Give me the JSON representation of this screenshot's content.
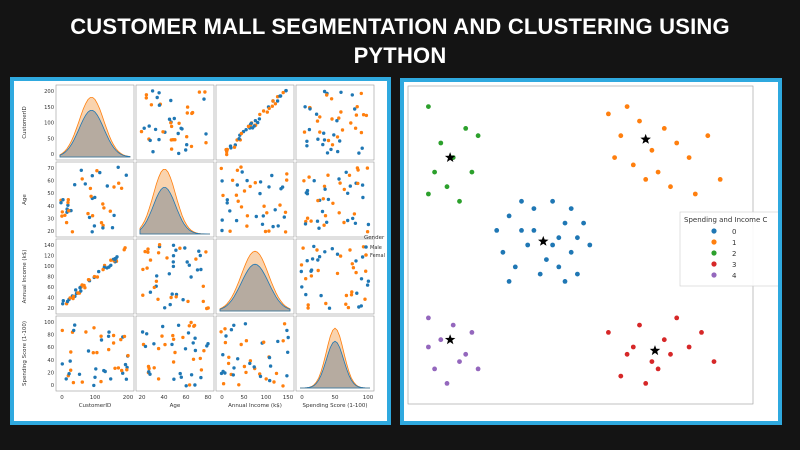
{
  "banner": {
    "title_line1": "CUSTOMER MALL SEGMENTATION AND CLUSTERING USING",
    "title_line2": "PYTHON"
  },
  "colors": {
    "background": "#141414",
    "panel_border": "#2fa9df",
    "male": "#1f77b4",
    "female": "#ff7f0e",
    "cluster0": "#1f77b4",
    "cluster1": "#ff7f0e",
    "cluster2": "#2ca02c",
    "cluster3": "#d62728",
    "cluster4": "#9467bd"
  },
  "pairplot": {
    "variables": [
      "CustomerID",
      "Age",
      "Annual Income (k$)",
      "Spending Score (1-100)"
    ],
    "legend_title": "Gender",
    "hue_levels": [
      "Male",
      "Female"
    ],
    "x_ticks": [
      [
        "0",
        "100",
        "200"
      ],
      [
        "20",
        "40",
        "60",
        "80"
      ],
      [
        "0",
        "50",
        "100",
        "150"
      ],
      [
        "0",
        "50",
        "100"
      ]
    ],
    "y_ticks": [
      [
        "0",
        "50",
        "100",
        "150",
        "200"
      ],
      [
        "20",
        "30",
        "40",
        "50",
        "60",
        "70"
      ],
      [
        "20",
        "40",
        "60",
        "80",
        "100",
        "120",
        "140"
      ],
      [
        "0",
        "20",
        "40",
        "60",
        "80",
        "100"
      ]
    ]
  },
  "chart_data": [
    {
      "type": "scatter",
      "title": "",
      "kind": "pairplot",
      "variables": [
        "CustomerID",
        "Age",
        "Annual Income (k$)",
        "Spending Score (1-100)"
      ],
      "hue": "Gender",
      "series": [
        {
          "name": "Male"
        },
        {
          "name": "Female"
        }
      ],
      "ranges": {
        "CustomerID": [
          0,
          200
        ],
        "Age": [
          18,
          70
        ],
        "Annual Income (k$)": [
          15,
          137
        ],
        "Spending Score (1-100)": [
          1,
          99
        ]
      }
    },
    {
      "type": "scatter",
      "title": "",
      "xlabel": "",
      "ylabel": "",
      "legend_title": "Spending and Income C",
      "legend_position": "right",
      "series": [
        {
          "name": "0",
          "points": [
            [
              -0.6,
              0.4
            ],
            [
              -0.4,
              0.2
            ],
            [
              -0.2,
              0.5
            ],
            [
              0.1,
              0.6
            ],
            [
              0.3,
              0.3
            ],
            [
              0.5,
              0.1
            ],
            [
              -0.7,
              -0.1
            ],
            [
              -0.5,
              -0.3
            ],
            [
              -0.3,
              0.0
            ],
            [
              0.0,
              -0.2
            ],
            [
              0.2,
              0.1
            ],
            [
              0.4,
              -0.1
            ],
            [
              0.6,
              0.3
            ],
            [
              -0.8,
              0.2
            ],
            [
              -0.1,
              -0.4
            ],
            [
              0.3,
              -0.5
            ],
            [
              0.5,
              -0.4
            ],
            [
              -0.6,
              -0.5
            ],
            [
              0.1,
              0.0
            ],
            [
              -0.2,
              0.2
            ],
            [
              0.4,
              0.5
            ],
            [
              -0.4,
              0.6
            ],
            [
              0.7,
              0.0
            ],
            [
              0.2,
              -0.3
            ]
          ]
        },
        {
          "name": "1",
          "points": [
            [
              1.0,
              1.8
            ],
            [
              1.2,
              1.5
            ],
            [
              1.5,
              1.7
            ],
            [
              1.7,
              1.3
            ],
            [
              1.9,
              1.6
            ],
            [
              2.1,
              1.4
            ],
            [
              1.1,
              1.2
            ],
            [
              1.4,
              1.1
            ],
            [
              1.6,
              0.9
            ],
            [
              1.8,
              1.0
            ],
            [
              2.3,
              1.2
            ],
            [
              2.6,
              1.5
            ],
            [
              1.3,
              1.9
            ],
            [
              2.0,
              0.8
            ],
            [
              2.4,
              0.7
            ],
            [
              2.8,
              0.9
            ]
          ]
        },
        {
          "name": "2",
          "points": [
            [
              -1.9,
              1.9
            ],
            [
              -1.7,
              1.4
            ],
            [
              -1.5,
              1.2
            ],
            [
              -1.3,
              1.6
            ],
            [
              -1.8,
              1.0
            ],
            [
              -1.6,
              0.8
            ],
            [
              -1.2,
              1.0
            ],
            [
              -1.4,
              0.6
            ],
            [
              -1.9,
              0.7
            ],
            [
              -1.1,
              1.5
            ]
          ]
        },
        {
          "name": "3",
          "points": [
            [
              1.0,
              -1.2
            ],
            [
              1.3,
              -1.5
            ],
            [
              1.5,
              -1.1
            ],
            [
              1.7,
              -1.6
            ],
            [
              1.9,
              -1.3
            ],
            [
              2.1,
              -1.0
            ],
            [
              2.3,
              -1.4
            ],
            [
              1.2,
              -1.8
            ],
            [
              1.6,
              -1.9
            ],
            [
              1.8,
              -1.7
            ],
            [
              2.0,
              -1.5
            ],
            [
              2.5,
              -1.2
            ],
            [
              2.7,
              -1.6
            ],
            [
              1.4,
              -1.4
            ]
          ]
        },
        {
          "name": "4",
          "points": [
            [
              -1.9,
              -1.0
            ],
            [
              -1.7,
              -1.3
            ],
            [
              -1.5,
              -1.1
            ],
            [
              -1.3,
              -1.5
            ],
            [
              -1.8,
              -1.7
            ],
            [
              -1.6,
              -1.9
            ],
            [
              -1.4,
              -1.6
            ],
            [
              -1.2,
              -1.2
            ],
            [
              -1.9,
              -1.4
            ],
            [
              -1.1,
              -1.7
            ]
          ]
        }
      ],
      "centroids": [
        [
          -0.05,
          0.05
        ],
        [
          1.6,
          1.45
        ],
        [
          -1.55,
          1.2
        ],
        [
          1.75,
          -1.45
        ],
        [
          -1.55,
          -1.3
        ]
      ],
      "centroid_marker": "black-star"
    }
  ]
}
